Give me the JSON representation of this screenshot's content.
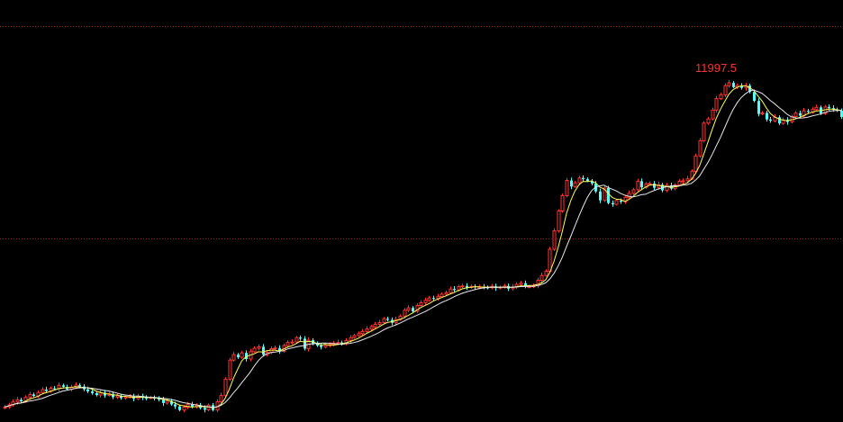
{
  "colors": {
    "background": "#000000",
    "up": "#ff3232",
    "down": "#54fcfc",
    "ma_fast": "#ffff54",
    "ma_slow": "#e8e8e8",
    "gridline": "#a02020",
    "peak_label": "#ff3232"
  },
  "annotation": {
    "peak_label": "11997.5"
  },
  "chart_data": {
    "type": "candlestick",
    "y_axis": {
      "visible": false,
      "ylim": [
        9360,
        12120
      ]
    },
    "reference_lines": [
      {
        "value": 11952,
        "style": "dotted"
      },
      {
        "value": 10560,
        "style": "dotted"
      }
    ],
    "overlays": [
      {
        "kind": "moving-average",
        "color_key": "ma_fast"
      },
      {
        "kind": "moving-average",
        "color_key": "ma_slow"
      }
    ],
    "closes": [
      9458,
      9472,
      9491,
      9505,
      9495,
      9520,
      9540,
      9530,
      9553,
      9572,
      9563,
      9580,
      9578,
      9600,
      9590,
      9574,
      9588,
      9601,
      9592,
      9574,
      9560,
      9549,
      9536,
      9552,
      9533,
      9544,
      9522,
      9531,
      9517,
      9524,
      9526,
      9512,
      9530,
      9518,
      9516,
      9520,
      9513,
      9506,
      9484,
      9497,
      9475,
      9462,
      9438,
      9457,
      9474,
      9460,
      9470,
      9452,
      9440,
      9470,
      9438,
      9492,
      9533,
      9640,
      9765,
      9800,
      9783,
      9812,
      9772,
      9820,
      9842,
      9852,
      9800,
      9816,
      9840,
      9844,
      9823,
      9860,
      9880,
      9883,
      9912,
      9905,
      9840,
      9895,
      9872,
      9860,
      9850,
      9862,
      9868,
      9874,
      9880,
      9872,
      9893,
      9912,
      9925,
      9938,
      9952,
      9968,
      9983,
      9999,
      10010,
      10035,
      10028,
      10009,
      10030,
      10051,
      10091,
      10106,
      10084,
      10122,
      10140,
      10155,
      10171,
      10168,
      10180,
      10196,
      10206,
      10230,
      10223,
      10245,
      10250,
      10240,
      10247,
      10242,
      10243,
      10240,
      10238,
      10247,
      10236,
      10241,
      10250,
      10232,
      10243,
      10260,
      10268,
      10245,
      10245,
      10252,
      10287,
      10318,
      10346,
      10490,
      10610,
      10740,
      10840,
      10940,
      10900,
      10924,
      10956,
      10948,
      10935,
      10920,
      10868,
      10810,
      10890,
      10792,
      10784,
      10808,
      10800,
      10830,
      10855,
      10879,
      10935,
      10895,
      10918,
      10920,
      10892,
      10912,
      10875,
      10908,
      10886,
      10910,
      10934,
      10938,
      10950,
      11000,
      11100,
      11200,
      11315,
      11342,
      11400,
      11475,
      11500,
      11560,
      11578,
      11550,
      11560,
      11545,
      11560,
      11519,
      11460,
      11375,
      11382,
      11339,
      11330,
      11353,
      11313,
      11336,
      11322,
      11358,
      11380,
      11364,
      11395,
      11388,
      11404,
      11418,
      11378,
      11420,
      11413,
      11404,
      11396,
      11355
    ]
  }
}
